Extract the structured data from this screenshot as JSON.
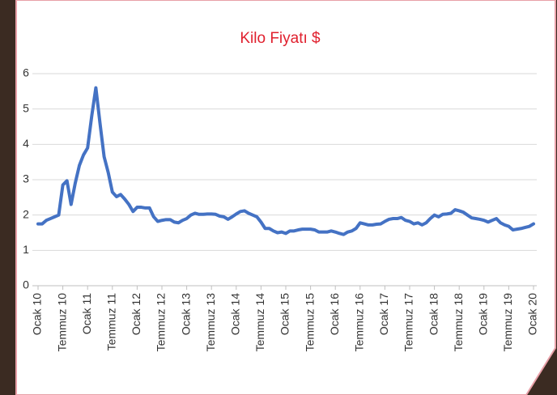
{
  "chart_data": {
    "type": "line",
    "title": "Kilo Fiyatı $",
    "categories": [
      "Ocak 10",
      null,
      null,
      null,
      null,
      null,
      "Temmuz 10",
      null,
      null,
      null,
      null,
      null,
      "Ocak 11",
      null,
      null,
      null,
      null,
      null,
      "Temmuz 11",
      null,
      null,
      null,
      null,
      null,
      "Ocak 12",
      null,
      null,
      null,
      null,
      null,
      "Temmuz 12",
      null,
      null,
      null,
      null,
      null,
      "Ocak 13",
      null,
      null,
      null,
      null,
      null,
      "Temmuz 13",
      null,
      null,
      null,
      null,
      null,
      "Ocak 14",
      null,
      null,
      null,
      null,
      null,
      "Temmuz 14",
      null,
      null,
      null,
      null,
      null,
      "Ocak 15",
      null,
      null,
      null,
      null,
      null,
      "Temmuz 15",
      null,
      null,
      null,
      null,
      null,
      "Ocak 16",
      null,
      null,
      null,
      null,
      null,
      "Temmuz 16",
      null,
      null,
      null,
      null,
      null,
      "Ocak 17",
      null,
      null,
      null,
      null,
      null,
      "Temmuz 17",
      null,
      null,
      null,
      null,
      null,
      "Ocak 18",
      null,
      null,
      null,
      null,
      null,
      "Temmuz 18",
      null,
      null,
      null,
      null,
      null,
      "Ocak 19",
      null,
      null,
      null,
      null,
      null,
      "Temmuz 19",
      null,
      null,
      null,
      null,
      null,
      "Ocak 20"
    ],
    "values": [
      1.75,
      1.75,
      1.85,
      1.9,
      1.95,
      2.0,
      2.85,
      2.97,
      2.3,
      2.9,
      3.4,
      3.7,
      3.9,
      4.8,
      5.6,
      4.6,
      3.65,
      3.2,
      2.65,
      2.52,
      2.58,
      2.45,
      2.3,
      2.1,
      2.22,
      2.22,
      2.2,
      2.2,
      1.95,
      1.82,
      1.85,
      1.87,
      1.87,
      1.8,
      1.78,
      1.85,
      1.9,
      2.0,
      2.05,
      2.02,
      2.02,
      2.03,
      2.03,
      2.02,
      1.97,
      1.95,
      1.88,
      1.95,
      2.03,
      2.1,
      2.12,
      2.05,
      2.0,
      1.95,
      1.8,
      1.62,
      1.62,
      1.55,
      1.5,
      1.52,
      1.48,
      1.55,
      1.55,
      1.58,
      1.6,
      1.6,
      1.6,
      1.58,
      1.52,
      1.52,
      1.52,
      1.55,
      1.52,
      1.48,
      1.45,
      1.52,
      1.55,
      1.62,
      1.78,
      1.75,
      1.72,
      1.72,
      1.74,
      1.75,
      1.82,
      1.88,
      1.9,
      1.9,
      1.93,
      1.85,
      1.82,
      1.75,
      1.78,
      1.72,
      1.78,
      1.9,
      2.0,
      1.95,
      2.02,
      2.03,
      2.05,
      2.15,
      2.12,
      2.08,
      2.0,
      1.92,
      1.9,
      1.88,
      1.85,
      1.8,
      1.85,
      1.9,
      1.78,
      1.72,
      1.68,
      1.58,
      1.6,
      1.62,
      1.65,
      1.68,
      1.75
    ],
    "color": "#4472c4",
    "ylim": [
      0,
      6
    ],
    "yticks": [
      0,
      1,
      2,
      3,
      4,
      5,
      6
    ],
    "grid": true
  }
}
